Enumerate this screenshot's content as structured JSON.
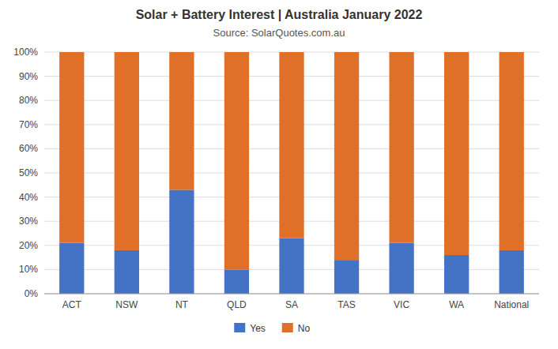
{
  "chart_data": {
    "type": "bar",
    "title": "Solar + Battery Interest  |  Australia January 2022",
    "subtitle": "Source: SolarQuotes.com.au",
    "categories": [
      "ACT",
      "NSW",
      "NT",
      "QLD",
      "SA",
      "TAS",
      "VIC",
      "WA",
      "National"
    ],
    "series": [
      {
        "name": "Yes",
        "color": "#4472C4",
        "values": [
          21,
          18,
          43,
          10,
          23,
          14,
          21,
          16,
          18
        ]
      },
      {
        "name": "No",
        "color": "#E07028",
        "values": [
          79,
          82,
          57,
          90,
          77,
          86,
          79,
          84,
          82
        ]
      }
    ],
    "stacked": true,
    "ylim": [
      0,
      100
    ],
    "yticks": [
      {
        "value": 0,
        "label": "0%"
      },
      {
        "value": 10,
        "label": "10%"
      },
      {
        "value": 20,
        "label": "20%"
      },
      {
        "value": 30,
        "label": "30%"
      },
      {
        "value": 40,
        "label": "40%"
      },
      {
        "value": 50,
        "label": "50%"
      },
      {
        "value": 60,
        "label": "60%"
      },
      {
        "value": 70,
        "label": "70%"
      },
      {
        "value": 80,
        "label": "80%"
      },
      {
        "value": 90,
        "label": "90%"
      },
      {
        "value": 100,
        "label": "100%"
      }
    ],
    "grid": true,
    "legend": "bottom"
  }
}
